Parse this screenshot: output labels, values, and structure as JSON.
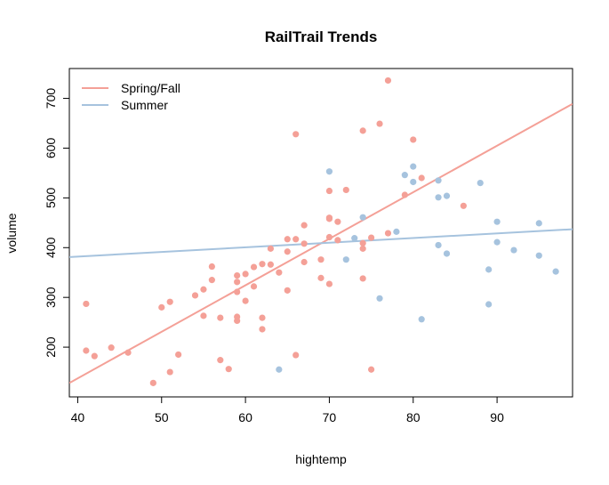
{
  "chart_data": {
    "type": "scatter",
    "title": "RailTrail Trends",
    "xlabel": "hightemp",
    "ylabel": "volume",
    "xlim": [
      39,
      99
    ],
    "ylim": [
      100,
      760
    ],
    "xticks": [
      40,
      50,
      60,
      70,
      80,
      90
    ],
    "yticks": [
      200,
      300,
      400,
      500,
      600,
      700
    ],
    "grid": false,
    "legend_position": "top-left",
    "series": [
      {
        "name": "Spring/Fall",
        "color": "#F4A097",
        "points": [
          [
            41,
            287
          ],
          [
            41,
            193
          ],
          [
            42,
            182
          ],
          [
            44,
            199
          ],
          [
            46,
            189
          ],
          [
            49,
            128
          ],
          [
            50,
            280
          ],
          [
            51,
            291
          ],
          [
            51,
            150
          ],
          [
            52,
            185
          ],
          [
            54,
            304
          ],
          [
            55,
            316
          ],
          [
            55,
            263
          ],
          [
            56,
            362
          ],
          [
            56,
            335
          ],
          [
            57,
            259
          ],
          [
            57,
            174
          ],
          [
            58,
            156
          ],
          [
            59,
            344
          ],
          [
            59,
            331
          ],
          [
            59,
            311
          ],
          [
            59,
            261
          ],
          [
            59,
            253
          ],
          [
            60,
            347
          ],
          [
            60,
            293
          ],
          [
            61,
            361
          ],
          [
            61,
            322
          ],
          [
            62,
            367
          ],
          [
            62,
            259
          ],
          [
            62,
            236
          ],
          [
            63,
            398
          ],
          [
            63,
            366
          ],
          [
            64,
            350
          ],
          [
            65,
            417
          ],
          [
            65,
            392
          ],
          [
            65,
            314
          ],
          [
            66,
            628
          ],
          [
            66,
            417
          ],
          [
            66,
            184
          ],
          [
            67,
            445
          ],
          [
            67,
            408
          ],
          [
            67,
            371
          ],
          [
            69,
            376
          ],
          [
            69,
            339
          ],
          [
            70,
            514
          ],
          [
            70,
            460
          ],
          [
            70,
            458
          ],
          [
            70,
            421
          ],
          [
            70,
            327
          ],
          [
            71,
            452
          ],
          [
            71,
            415
          ],
          [
            72,
            516
          ],
          [
            74,
            635
          ],
          [
            74,
            409
          ],
          [
            74,
            398
          ],
          [
            74,
            338
          ],
          [
            75,
            420
          ],
          [
            75,
            155
          ],
          [
            76,
            649
          ],
          [
            77,
            429
          ],
          [
            77,
            736
          ],
          [
            79,
            506
          ],
          [
            80,
            617
          ],
          [
            81,
            540
          ],
          [
            86,
            484
          ]
        ],
        "fit_line": {
          "x": [
            39,
            99
          ],
          "y": [
            128,
            689
          ]
        }
      },
      {
        "name": "Summer",
        "color": "#A6C3DE",
        "points": [
          [
            64,
            155
          ],
          [
            70,
            553
          ],
          [
            72,
            376
          ],
          [
            73,
            419
          ],
          [
            74,
            461
          ],
          [
            76,
            298
          ],
          [
            78,
            432
          ],
          [
            79,
            546
          ],
          [
            80,
            563
          ],
          [
            80,
            532
          ],
          [
            81,
            256
          ],
          [
            83,
            535
          ],
          [
            83,
            501
          ],
          [
            83,
            405
          ],
          [
            84,
            504
          ],
          [
            84,
            388
          ],
          [
            88,
            530
          ],
          [
            89,
            356
          ],
          [
            89,
            286
          ],
          [
            90,
            452
          ],
          [
            90,
            411
          ],
          [
            92,
            395
          ],
          [
            95,
            449
          ],
          [
            95,
            384
          ],
          [
            97,
            352
          ]
        ],
        "fit_line": {
          "x": [
            39,
            99
          ],
          "y": [
            381,
            437
          ]
        }
      }
    ]
  }
}
